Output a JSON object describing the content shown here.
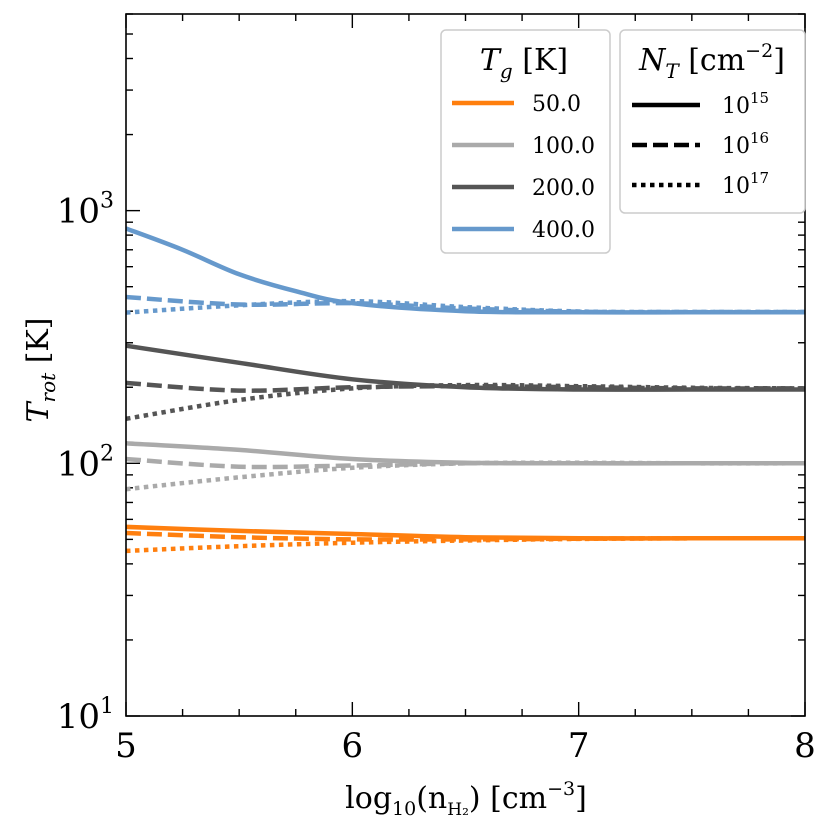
{
  "chart_data": {
    "type": "line",
    "title": "",
    "xlabel": "log₁₀(n_H₂) [cm⁻³]",
    "xlabel_parts": {
      "main": "log",
      "sub1": "10",
      "open": "(n",
      "sub2": "H₂",
      "close": ") [cm",
      "sup": "−3",
      "end": "]"
    },
    "ylabel": "T_rot [K]",
    "ylabel_parts": {
      "main": "T",
      "sub": "rot",
      "unit": " [K]"
    },
    "xlim": [
      5,
      8
    ],
    "ylim": [
      10,
      6000
    ],
    "yscale": "log",
    "x_ticks": [
      "5",
      "6",
      "7",
      "8"
    ],
    "y_ticks": [
      {
        "value": 10,
        "base": "10",
        "exp": "1"
      },
      {
        "value": 100,
        "base": "10",
        "exp": "2"
      },
      {
        "value": 1000,
        "base": "10",
        "exp": "3"
      }
    ],
    "legend_tg": {
      "title_main": "T",
      "title_sub": "g",
      "title_unit": " [K]",
      "entries": [
        {
          "label": "50.0",
          "color": "#ff7f0e"
        },
        {
          "label": "100.0",
          "color": "#aaaaaa"
        },
        {
          "label": "200.0",
          "color": "#555555"
        },
        {
          "label": "400.0",
          "color": "#6699cc"
        }
      ]
    },
    "legend_nt": {
      "title_main": "N",
      "title_sub": "T",
      "title_unit": " [cm",
      "title_sup": "−2",
      "title_end": "]",
      "entries": [
        {
          "style": "solid",
          "base": "10",
          "exp": "15"
        },
        {
          "style": "dashed",
          "base": "10",
          "exp": "16"
        },
        {
          "style": "dotted",
          "base": "10",
          "exp": "17"
        }
      ]
    },
    "series": [
      {
        "tg": "50.0",
        "nt": "1e15",
        "style": "solid",
        "color": "#ff7f0e",
        "x": [
          5.0,
          5.5,
          6.0,
          6.5,
          7.0,
          7.5,
          8.0
        ],
        "y": [
          56,
          54,
          52.5,
          51,
          50.5,
          50.5,
          50.5
        ]
      },
      {
        "tg": "50.0",
        "nt": "1e16",
        "style": "dashed",
        "color": "#ff7f0e",
        "x": [
          5.0,
          5.5,
          6.0,
          6.5,
          7.0,
          7.5,
          8.0
        ],
        "y": [
          53,
          51,
          50,
          50,
          50.3,
          50.5,
          50.5
        ]
      },
      {
        "tg": "50.0",
        "nt": "1e17",
        "style": "dotted",
        "color": "#ff7f0e",
        "x": [
          5.0,
          5.5,
          6.0,
          6.5,
          7.0,
          7.5,
          8.0
        ],
        "y": [
          45,
          47,
          48.5,
          49.5,
          50.2,
          50.5,
          50.5
        ]
      },
      {
        "tg": "100.0",
        "nt": "1e15",
        "style": "solid",
        "color": "#aaaaaa",
        "x": [
          5.0,
          5.5,
          6.0,
          6.5,
          7.0,
          7.5,
          8.0
        ],
        "y": [
          120,
          113,
          104,
          100.5,
          100,
          100,
          100
        ]
      },
      {
        "tg": "100.0",
        "nt": "1e16",
        "style": "dashed",
        "color": "#aaaaaa",
        "x": [
          5.0,
          5.5,
          6.0,
          6.5,
          7.0,
          7.5,
          8.0
        ],
        "y": [
          104,
          97,
          98,
          100,
          100,
          100,
          100
        ]
      },
      {
        "tg": "100.0",
        "nt": "1e17",
        "style": "dotted",
        "color": "#aaaaaa",
        "x": [
          5.0,
          5.5,
          6.0,
          6.5,
          7.0,
          7.5,
          8.0
        ],
        "y": [
          79,
          88,
          96,
          100,
          100.5,
          100,
          100
        ]
      },
      {
        "tg": "200.0",
        "nt": "1e15",
        "style": "solid",
        "color": "#555555",
        "x": [
          5.0,
          5.5,
          6.0,
          6.5,
          7.0,
          7.5,
          8.0
        ],
        "y": [
          292,
          250,
          215,
          200,
          196,
          196,
          196
        ]
      },
      {
        "tg": "200.0",
        "nt": "1e16",
        "style": "dashed",
        "color": "#555555",
        "x": [
          5.0,
          5.5,
          6.0,
          6.5,
          7.0,
          7.5,
          8.0
        ],
        "y": [
          208,
          194,
          200,
          202,
          200,
          198,
          198
        ]
      },
      {
        "tg": "200.0",
        "nt": "1e17",
        "style": "dotted",
        "color": "#555555",
        "x": [
          5.0,
          5.5,
          6.0,
          6.5,
          7.0,
          7.5,
          8.0
        ],
        "y": [
          150,
          178,
          198,
          204,
          202,
          199,
          198
        ]
      },
      {
        "tg": "400.0",
        "nt": "1e15",
        "style": "solid",
        "color": "#6699cc",
        "x": [
          5.0,
          5.25,
          5.5,
          5.75,
          6.0,
          6.5,
          7.0,
          7.5,
          8.0
        ],
        "y": [
          850,
          700,
          560,
          480,
          430,
          400,
          396,
          396,
          396
        ]
      },
      {
        "tg": "400.0",
        "nt": "1e16",
        "style": "dashed",
        "color": "#6699cc",
        "x": [
          5.0,
          5.5,
          6.0,
          6.5,
          7.0,
          7.5,
          8.0
        ],
        "y": [
          455,
          425,
          430,
          410,
          398,
          397,
          397
        ]
      },
      {
        "tg": "400.0",
        "nt": "1e17",
        "style": "dotted",
        "color": "#6699cc",
        "x": [
          5.0,
          5.5,
          6.0,
          6.5,
          7.0,
          7.5,
          8.0
        ],
        "y": [
          395,
          422,
          438,
          415,
          399,
          397,
          397
        ]
      }
    ]
  }
}
